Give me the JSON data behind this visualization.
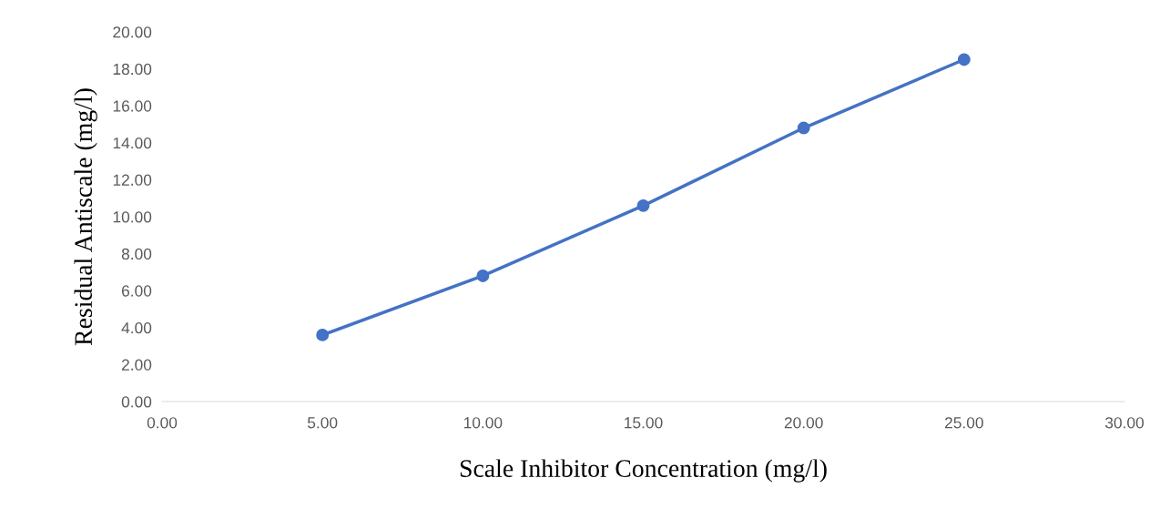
{
  "chart_data": {
    "type": "line",
    "xlabel": "Scale Inhibitor Concentration (mg/l)",
    "ylabel": "Residual Antiscale (mg/l)",
    "x": [
      5,
      10,
      15,
      20,
      25
    ],
    "series": [
      {
        "color": "#4472c4",
        "values": [
          3.6,
          6.8,
          10.6,
          14.8,
          18.5
        ]
      }
    ],
    "xlim": [
      0,
      30
    ],
    "xticks": [
      {
        "value": 0,
        "label": "0.00"
      },
      {
        "value": 5,
        "label": "5.00"
      },
      {
        "value": 10,
        "label": "10.00"
      },
      {
        "value": 15,
        "label": "15.00"
      },
      {
        "value": 20,
        "label": "20.00"
      },
      {
        "value": 25,
        "label": "25.00"
      },
      {
        "value": 30,
        "label": "30.00"
      }
    ],
    "ylim": [
      0,
      20
    ],
    "yticks": [
      {
        "value": 0,
        "label": "0.00"
      },
      {
        "value": 2,
        "label": "2.00"
      },
      {
        "value": 4,
        "label": "4.00"
      },
      {
        "value": 6,
        "label": "6.00"
      },
      {
        "value": 8,
        "label": "8.00"
      },
      {
        "value": 10,
        "label": "10.00"
      },
      {
        "value": 12,
        "label": "12.00"
      },
      {
        "value": 14,
        "label": "14.00"
      },
      {
        "value": 16,
        "label": "16.00"
      },
      {
        "value": 18,
        "label": "18.00"
      },
      {
        "value": 20,
        "label": "20.00"
      }
    ],
    "marker": "circle",
    "line_style": "solid",
    "grid": false,
    "legend": false
  }
}
